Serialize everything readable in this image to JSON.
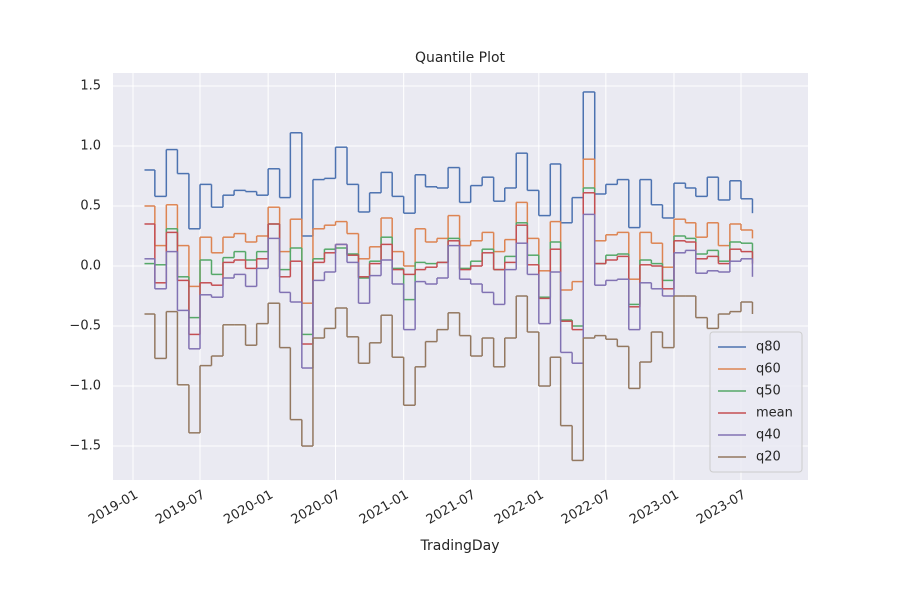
{
  "chart_data": {
    "type": "step",
    "title": "Quantile Plot",
    "xlabel": "TradingDay",
    "x": [
      "2019-02",
      "2019-03",
      "2019-04",
      "2019-05",
      "2019-06",
      "2019-07",
      "2019-08",
      "2019-09",
      "2019-10",
      "2019-11",
      "2019-12",
      "2020-01",
      "2020-02",
      "2020-03",
      "2020-04",
      "2020-05",
      "2020-06",
      "2020-07",
      "2020-08",
      "2020-09",
      "2020-10",
      "2020-11",
      "2020-12",
      "2021-01",
      "2021-02",
      "2021-03",
      "2021-04",
      "2021-05",
      "2021-06",
      "2021-07",
      "2021-08",
      "2021-09",
      "2021-10",
      "2021-11",
      "2021-12",
      "2022-01",
      "2022-02",
      "2022-03",
      "2022-04",
      "2022-05",
      "2022-06",
      "2022-07",
      "2022-08",
      "2022-09",
      "2022-10",
      "2022-11",
      "2022-12",
      "2023-01",
      "2023-02",
      "2023-03",
      "2023-04",
      "2023-05",
      "2023-06",
      "2023-07",
      "2023-08"
    ],
    "series": [
      {
        "name": "q80",
        "color": "#4c72b0",
        "values": [
          0.8,
          0.58,
          0.97,
          0.77,
          0.31,
          0.68,
          0.49,
          0.59,
          0.63,
          0.62,
          0.59,
          0.81,
          0.57,
          1.11,
          0.25,
          0.72,
          0.73,
          0.99,
          0.68,
          0.45,
          0.61,
          0.78,
          0.58,
          0.44,
          0.76,
          0.66,
          0.65,
          0.82,
          0.53,
          0.67,
          0.74,
          0.54,
          0.65,
          0.94,
          0.63,
          0.42,
          0.85,
          0.36,
          0.57,
          1.45,
          0.6,
          0.68,
          0.72,
          0.32,
          0.72,
          0.51,
          0.4,
          0.69,
          0.65,
          0.58,
          0.74,
          0.55,
          0.71,
          0.56,
          0.44
        ]
      },
      {
        "name": "q60",
        "color": "#dd8452",
        "values": [
          0.5,
          0.17,
          0.51,
          0.17,
          -0.17,
          0.24,
          0.11,
          0.24,
          0.27,
          0.2,
          0.25,
          0.49,
          0.12,
          0.39,
          -0.31,
          0.31,
          0.34,
          0.37,
          0.27,
          0.06,
          0.16,
          0.4,
          0.12,
          0.0,
          0.31,
          0.2,
          0.23,
          0.42,
          0.17,
          0.21,
          0.28,
          0.12,
          0.22,
          0.53,
          0.23,
          -0.04,
          0.37,
          -0.2,
          -0.13,
          0.89,
          0.21,
          0.26,
          0.28,
          -0.11,
          0.28,
          0.19,
          -0.01,
          0.39,
          0.36,
          0.24,
          0.36,
          0.17,
          0.35,
          0.3,
          0.23
        ]
      },
      {
        "name": "q50",
        "color": "#55a868",
        "values": [
          0.02,
          0.01,
          0.31,
          -0.09,
          -0.43,
          0.05,
          -0.07,
          0.07,
          0.12,
          0.05,
          0.12,
          0.35,
          -0.03,
          0.15,
          -0.57,
          0.06,
          0.14,
          0.15,
          0.1,
          -0.1,
          0.04,
          0.24,
          -0.02,
          -0.28,
          0.03,
          0.02,
          0.03,
          0.23,
          -0.02,
          0.04,
          0.14,
          -0.03,
          0.08,
          0.36,
          0.09,
          -0.26,
          0.2,
          -0.45,
          -0.5,
          0.65,
          0.02,
          0.09,
          0.1,
          -0.32,
          0.05,
          0.02,
          -0.12,
          0.25,
          0.23,
          0.1,
          0.13,
          0.04,
          0.2,
          0.19,
          0.06
        ]
      },
      {
        "name": "mean",
        "color": "#c44e52",
        "values": [
          0.35,
          -0.14,
          0.28,
          -0.12,
          -0.57,
          -0.14,
          -0.16,
          0.03,
          0.05,
          -0.02,
          0.06,
          0.35,
          -0.09,
          0.04,
          -0.65,
          0.03,
          0.11,
          0.18,
          0.09,
          -0.09,
          0.02,
          0.18,
          -0.03,
          -0.07,
          -0.03,
          -0.01,
          0.03,
          0.21,
          -0.03,
          0.0,
          0.11,
          -0.03,
          0.03,
          0.34,
          0.01,
          -0.27,
          0.14,
          -0.46,
          -0.53,
          0.61,
          0.02,
          0.05,
          0.08,
          -0.34,
          0.01,
          0.0,
          -0.19,
          0.21,
          0.2,
          0.06,
          0.08,
          0.02,
          0.14,
          0.12,
          0.02
        ]
      },
      {
        "name": "q40",
        "color": "#8172b3",
        "values": [
          0.06,
          -0.19,
          0.12,
          -0.37,
          -0.69,
          -0.24,
          -0.26,
          -0.1,
          -0.07,
          -0.17,
          -0.02,
          0.23,
          -0.22,
          -0.3,
          -0.85,
          -0.12,
          -0.05,
          0.18,
          0.03,
          -0.31,
          -0.08,
          0.05,
          -0.15,
          -0.53,
          -0.13,
          -0.15,
          -0.1,
          0.17,
          -0.11,
          -0.15,
          -0.22,
          -0.32,
          -0.03,
          0.19,
          -0.07,
          -0.48,
          -0.05,
          -0.72,
          -0.81,
          0.43,
          -0.16,
          -0.12,
          -0.11,
          -0.53,
          -0.14,
          -0.19,
          -0.25,
          0.11,
          0.13,
          -0.06,
          -0.04,
          -0.05,
          0.04,
          0.06,
          -0.09
        ]
      },
      {
        "name": "q20",
        "color": "#937860",
        "values": [
          -0.4,
          -0.77,
          -0.38,
          -0.99,
          -1.39,
          -0.83,
          -0.75,
          -0.49,
          -0.49,
          -0.66,
          -0.48,
          -0.31,
          -0.68,
          -1.28,
          -1.5,
          -0.6,
          -0.52,
          -0.35,
          -0.59,
          -0.81,
          -0.64,
          -0.41,
          -0.76,
          -1.16,
          -0.84,
          -0.63,
          -0.53,
          -0.39,
          -0.58,
          -0.75,
          -0.6,
          -0.84,
          -0.6,
          -0.25,
          -0.55,
          -1.0,
          -0.76,
          -1.33,
          -1.62,
          -0.6,
          -0.58,
          -0.61,
          -0.67,
          -1.02,
          -0.8,
          -0.55,
          -0.68,
          -0.25,
          -0.25,
          -0.43,
          -0.52,
          -0.4,
          -0.38,
          -0.3,
          -0.4
        ]
      }
    ],
    "xlim": [
      "2018-11-08",
      "2023-12-29"
    ],
    "xticks": [
      "2019-01",
      "2019-07",
      "2020-01",
      "2020-07",
      "2021-01",
      "2021-07",
      "2022-01",
      "2022-07",
      "2023-01",
      "2023-07"
    ],
    "ylim": [
      -1.783,
      1.608
    ],
    "yticks": [
      {
        "value": -1.5,
        "label": "−1.5"
      },
      {
        "value": -1.0,
        "label": "−1.0"
      },
      {
        "value": -0.5,
        "label": "−0.5"
      },
      {
        "value": 0,
        "label": "0.0"
      },
      0.5,
      {
        "value": 1.0,
        "label": "1.0"
      },
      1.5
    ],
    "grid": true,
    "legend": "lower right"
  }
}
